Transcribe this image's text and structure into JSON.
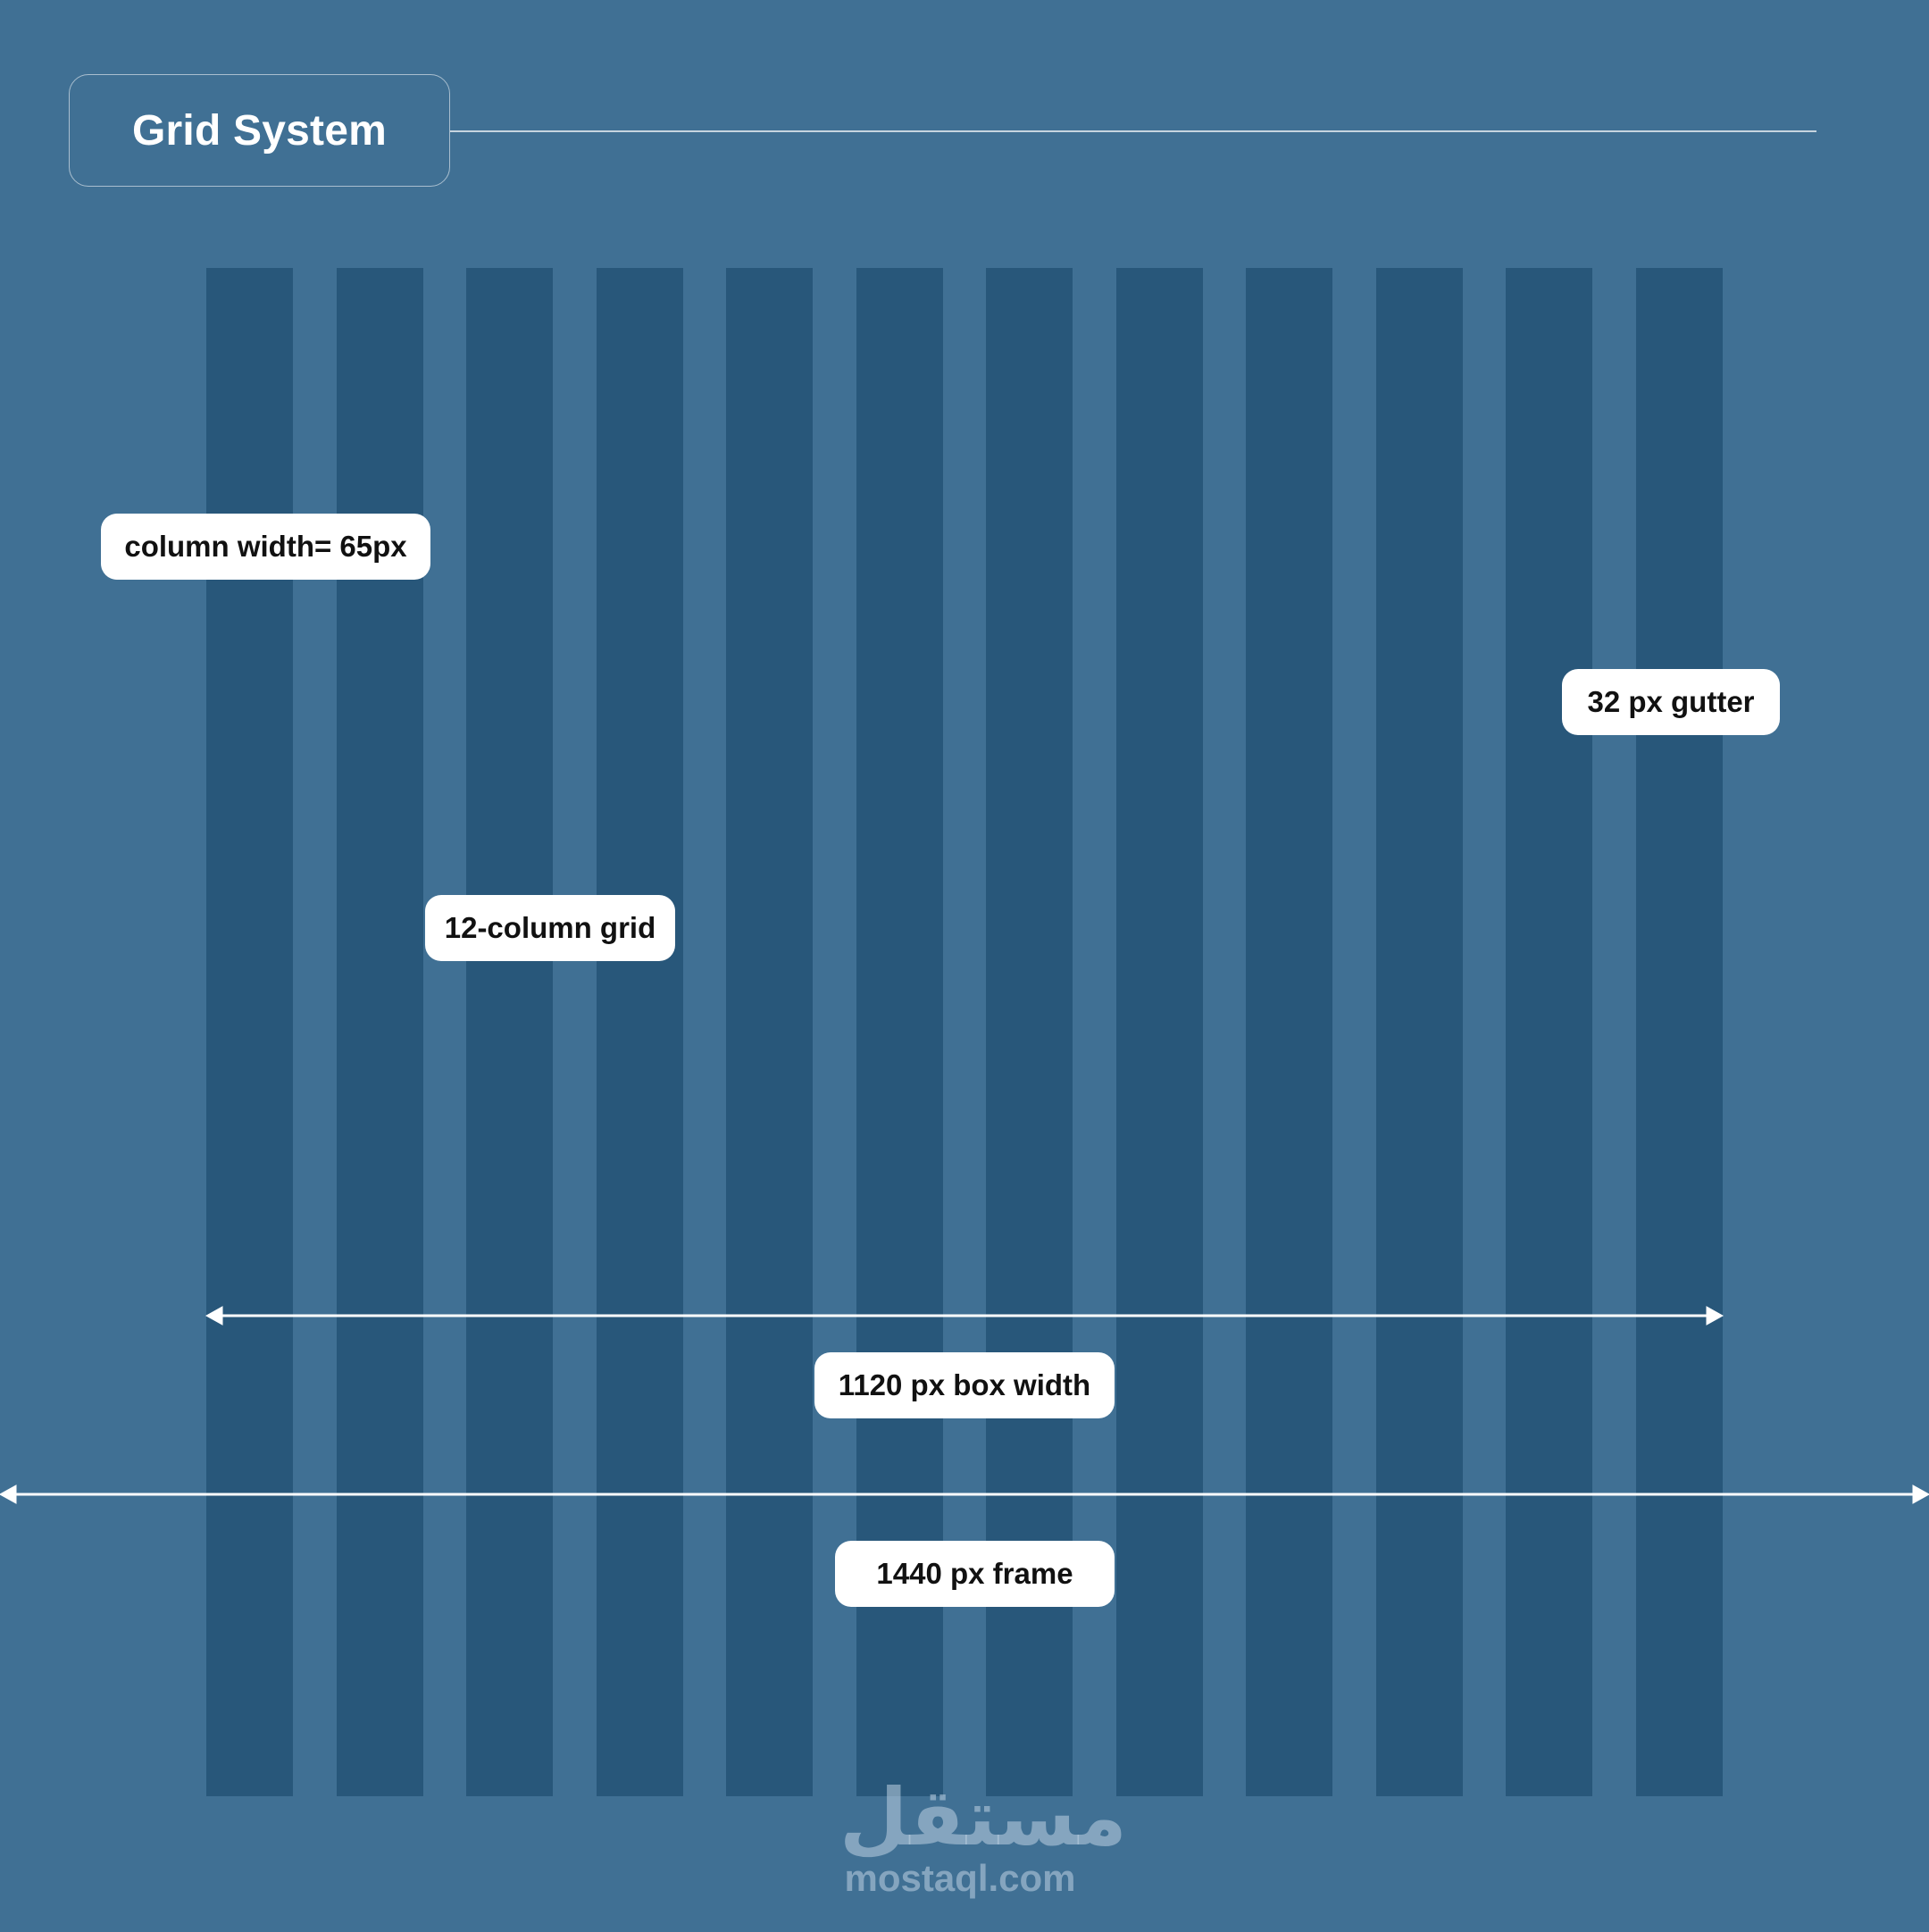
{
  "title": "Grid System",
  "grid": {
    "column_count": 12,
    "column_color": "#28577a",
    "background_color": "#407094"
  },
  "labels": {
    "column_width": "column width= 65px",
    "gutter": "32 px gutter",
    "columns": "12-column grid",
    "box_width": "1120 px box width",
    "frame": "1440 px frame"
  },
  "watermark": {
    "arabic": "مستقل",
    "latin": "mostaql.com"
  }
}
